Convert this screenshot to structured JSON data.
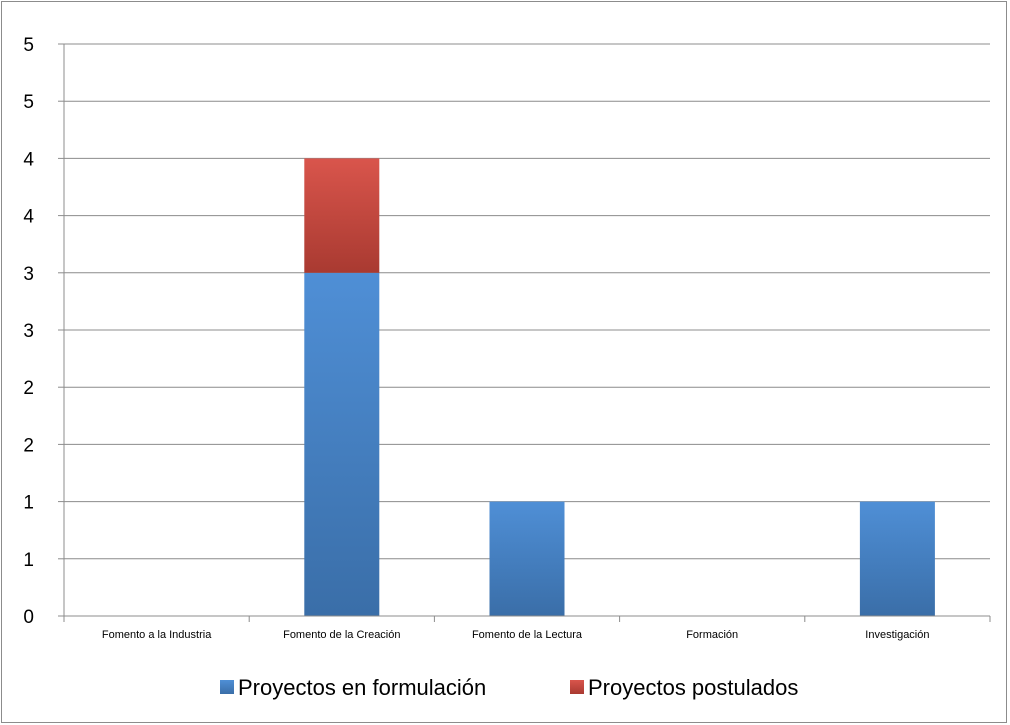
{
  "chart_data": {
    "type": "bar",
    "stacked": true,
    "categories": [
      "Fomento a la Industria",
      "Fomento de la Creación",
      "Fomento de la Lectura",
      "Formación",
      "Investigación"
    ],
    "series": [
      {
        "name": "Proyectos en formulación",
        "values": [
          0,
          3,
          1,
          0,
          1
        ],
        "color": "#4a86c8"
      },
      {
        "name": "Proyectos postulados",
        "values": [
          0,
          1,
          0,
          0,
          0
        ],
        "color": "#cc4b42"
      }
    ],
    "ylim": [
      0,
      5
    ],
    "yticks": [
      0,
      0.5,
      1,
      1.5,
      2,
      2.5,
      3,
      3.5,
      4,
      4.5,
      5
    ],
    "ytick_labels": [
      "0",
      "1",
      "1",
      "2",
      "2",
      "3",
      "3",
      "4",
      "4",
      "5",
      "5"
    ],
    "grid": true,
    "legend_position": "bottom",
    "title": "",
    "xlabel": "",
    "ylabel": ""
  }
}
